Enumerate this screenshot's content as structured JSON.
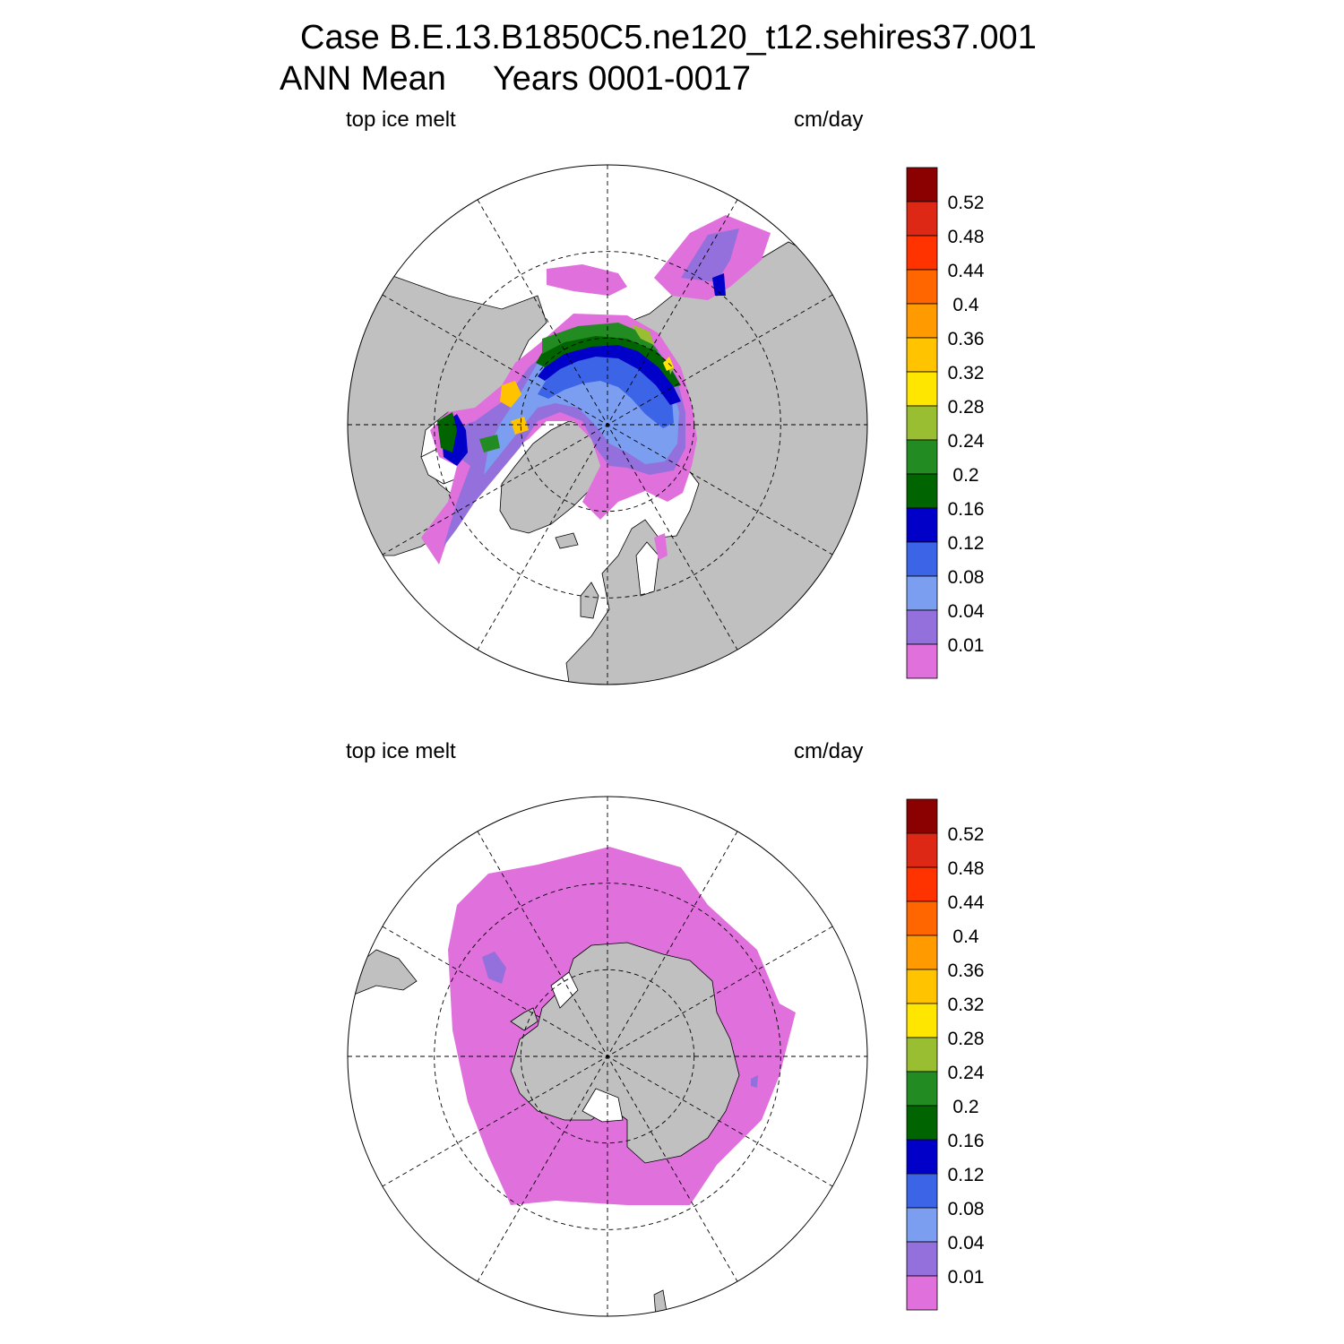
{
  "header": {
    "line1": "Case B.E.13.B1850C5.ne120_t12.sehires37.001",
    "line2": "ANN Mean     Years 0001-0017"
  },
  "colors": {
    "land": "#c0c0c0",
    "ocean": "#ffffff",
    "bins": [
      "#e070dc",
      "#9370dc",
      "#7b9ef0",
      "#3c64e6",
      "#0000c8",
      "#006400",
      "#228b22",
      "#9abe32",
      "#ffe600",
      "#ffc300",
      "#ff9a00",
      "#ff6600",
      "#ff3300",
      "#dc2814",
      "#8b0000"
    ]
  },
  "colorbar": {
    "levels": [
      "0.01",
      "0.04",
      "0.08",
      "0.12",
      "0.16",
      "0.2",
      "0.24",
      "0.28",
      "0.32",
      "0.36",
      "0.4",
      "0.44",
      "0.48",
      "0.52"
    ]
  },
  "panels": [
    {
      "id": "north",
      "left_label": "top ice melt",
      "right_label": "cm/day"
    },
    {
      "id": "south",
      "left_label": "top ice melt",
      "right_label": "cm/day"
    }
  ]
}
